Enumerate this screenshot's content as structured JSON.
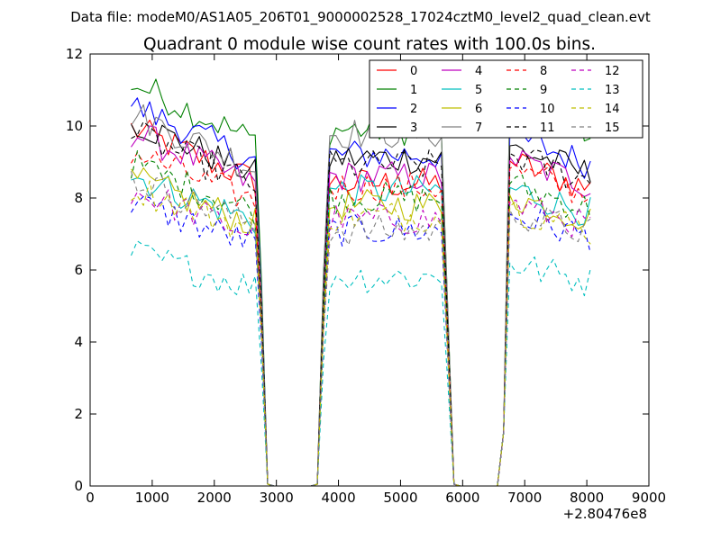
{
  "suptitle": "Data file: modeM0/AS1A05_206T01_9000002528_17024cztM0_level2_quad_clean.evt",
  "chart_data": {
    "type": "line",
    "title": "Quadrant 0 module wise count rates with 100.0s bins.",
    "xlabel": "",
    "ylabel": "",
    "x_offset_label": "+2.80476e8",
    "xlim": [
      0,
      9000
    ],
    "ylim": [
      0,
      12
    ],
    "xticks": [
      0,
      1000,
      2000,
      3000,
      4000,
      5000,
      6000,
      7000,
      8000,
      9000
    ],
    "yticks": [
      0,
      2,
      4,
      6,
      8,
      10,
      12
    ],
    "grid": false,
    "legend_placement": "top-right",
    "legend_columns": 4,
    "x_segments": [
      {
        "start": 660,
        "end": 2860,
        "step": 100,
        "level_end": 2660
      },
      {
        "start": 2960,
        "end": 3560,
        "step": 100
      },
      {
        "start": 3660,
        "end": 5860,
        "step": 100,
        "level_start": 3860,
        "level_end": 5660
      },
      {
        "start": 5960,
        "end": 6560,
        "step": 100
      },
      {
        "start": 6660,
        "end": 8060,
        "step": 100,
        "level_start": 6860
      }
    ],
    "series": [
      {
        "name": "0",
        "color": "#ff0000",
        "dash": "solid",
        "levels": [
          9.2,
          8.4,
          8.6
        ]
      },
      {
        "name": "1",
        "color": "#008000",
        "dash": "solid",
        "levels": [
          10.4,
          9.9,
          10.3
        ]
      },
      {
        "name": "2",
        "color": "#0000ff",
        "dash": "solid",
        "levels": [
          9.8,
          9.2,
          9.3
        ]
      },
      {
        "name": "3",
        "color": "#000000",
        "dash": "solid",
        "levels": [
          9.4,
          9.1,
          9.0
        ]
      },
      {
        "name": "4",
        "color": "#bf00bf",
        "dash": "solid",
        "levels": [
          9.1,
          8.6,
          8.7
        ]
      },
      {
        "name": "5",
        "color": "#00bfbf",
        "dash": "solid",
        "levels": [
          8.0,
          8.2,
          7.9
        ]
      },
      {
        "name": "6",
        "color": "#bfbf00",
        "dash": "solid",
        "levels": [
          7.9,
          7.8,
          7.7
        ]
      },
      {
        "name": "7",
        "color": "#808080",
        "dash": "solid",
        "levels": [
          9.6,
          9.8,
          10.2
        ]
      },
      {
        "name": "8",
        "color": "#ff0000",
        "dash": "dashed",
        "levels": [
          8.6,
          8.3,
          8.4
        ]
      },
      {
        "name": "9",
        "color": "#008000",
        "dash": "dashed",
        "levels": [
          8.3,
          8.0,
          8.0
        ]
      },
      {
        "name": "10",
        "color": "#0000ff",
        "dash": "dashed",
        "levels": [
          7.3,
          7.1,
          7.2
        ]
      },
      {
        "name": "11",
        "color": "#000000",
        "dash": "dashed",
        "levels": [
          9.1,
          8.9,
          8.8
        ]
      },
      {
        "name": "12",
        "color": "#bf00bf",
        "dash": "dashed",
        "levels": [
          7.6,
          7.4,
          7.5
        ]
      },
      {
        "name": "13",
        "color": "#00bfbf",
        "dash": "dashed",
        "levels": [
          6.0,
          5.8,
          5.9
        ]
      },
      {
        "name": "14",
        "color": "#bfbf00",
        "dash": "dashed",
        "levels": [
          7.7,
          7.5,
          7.4
        ]
      },
      {
        "name": "15",
        "color": "#808080",
        "dash": "dashed",
        "levels": [
          7.9,
          7.1,
          7.3
        ]
      }
    ]
  }
}
